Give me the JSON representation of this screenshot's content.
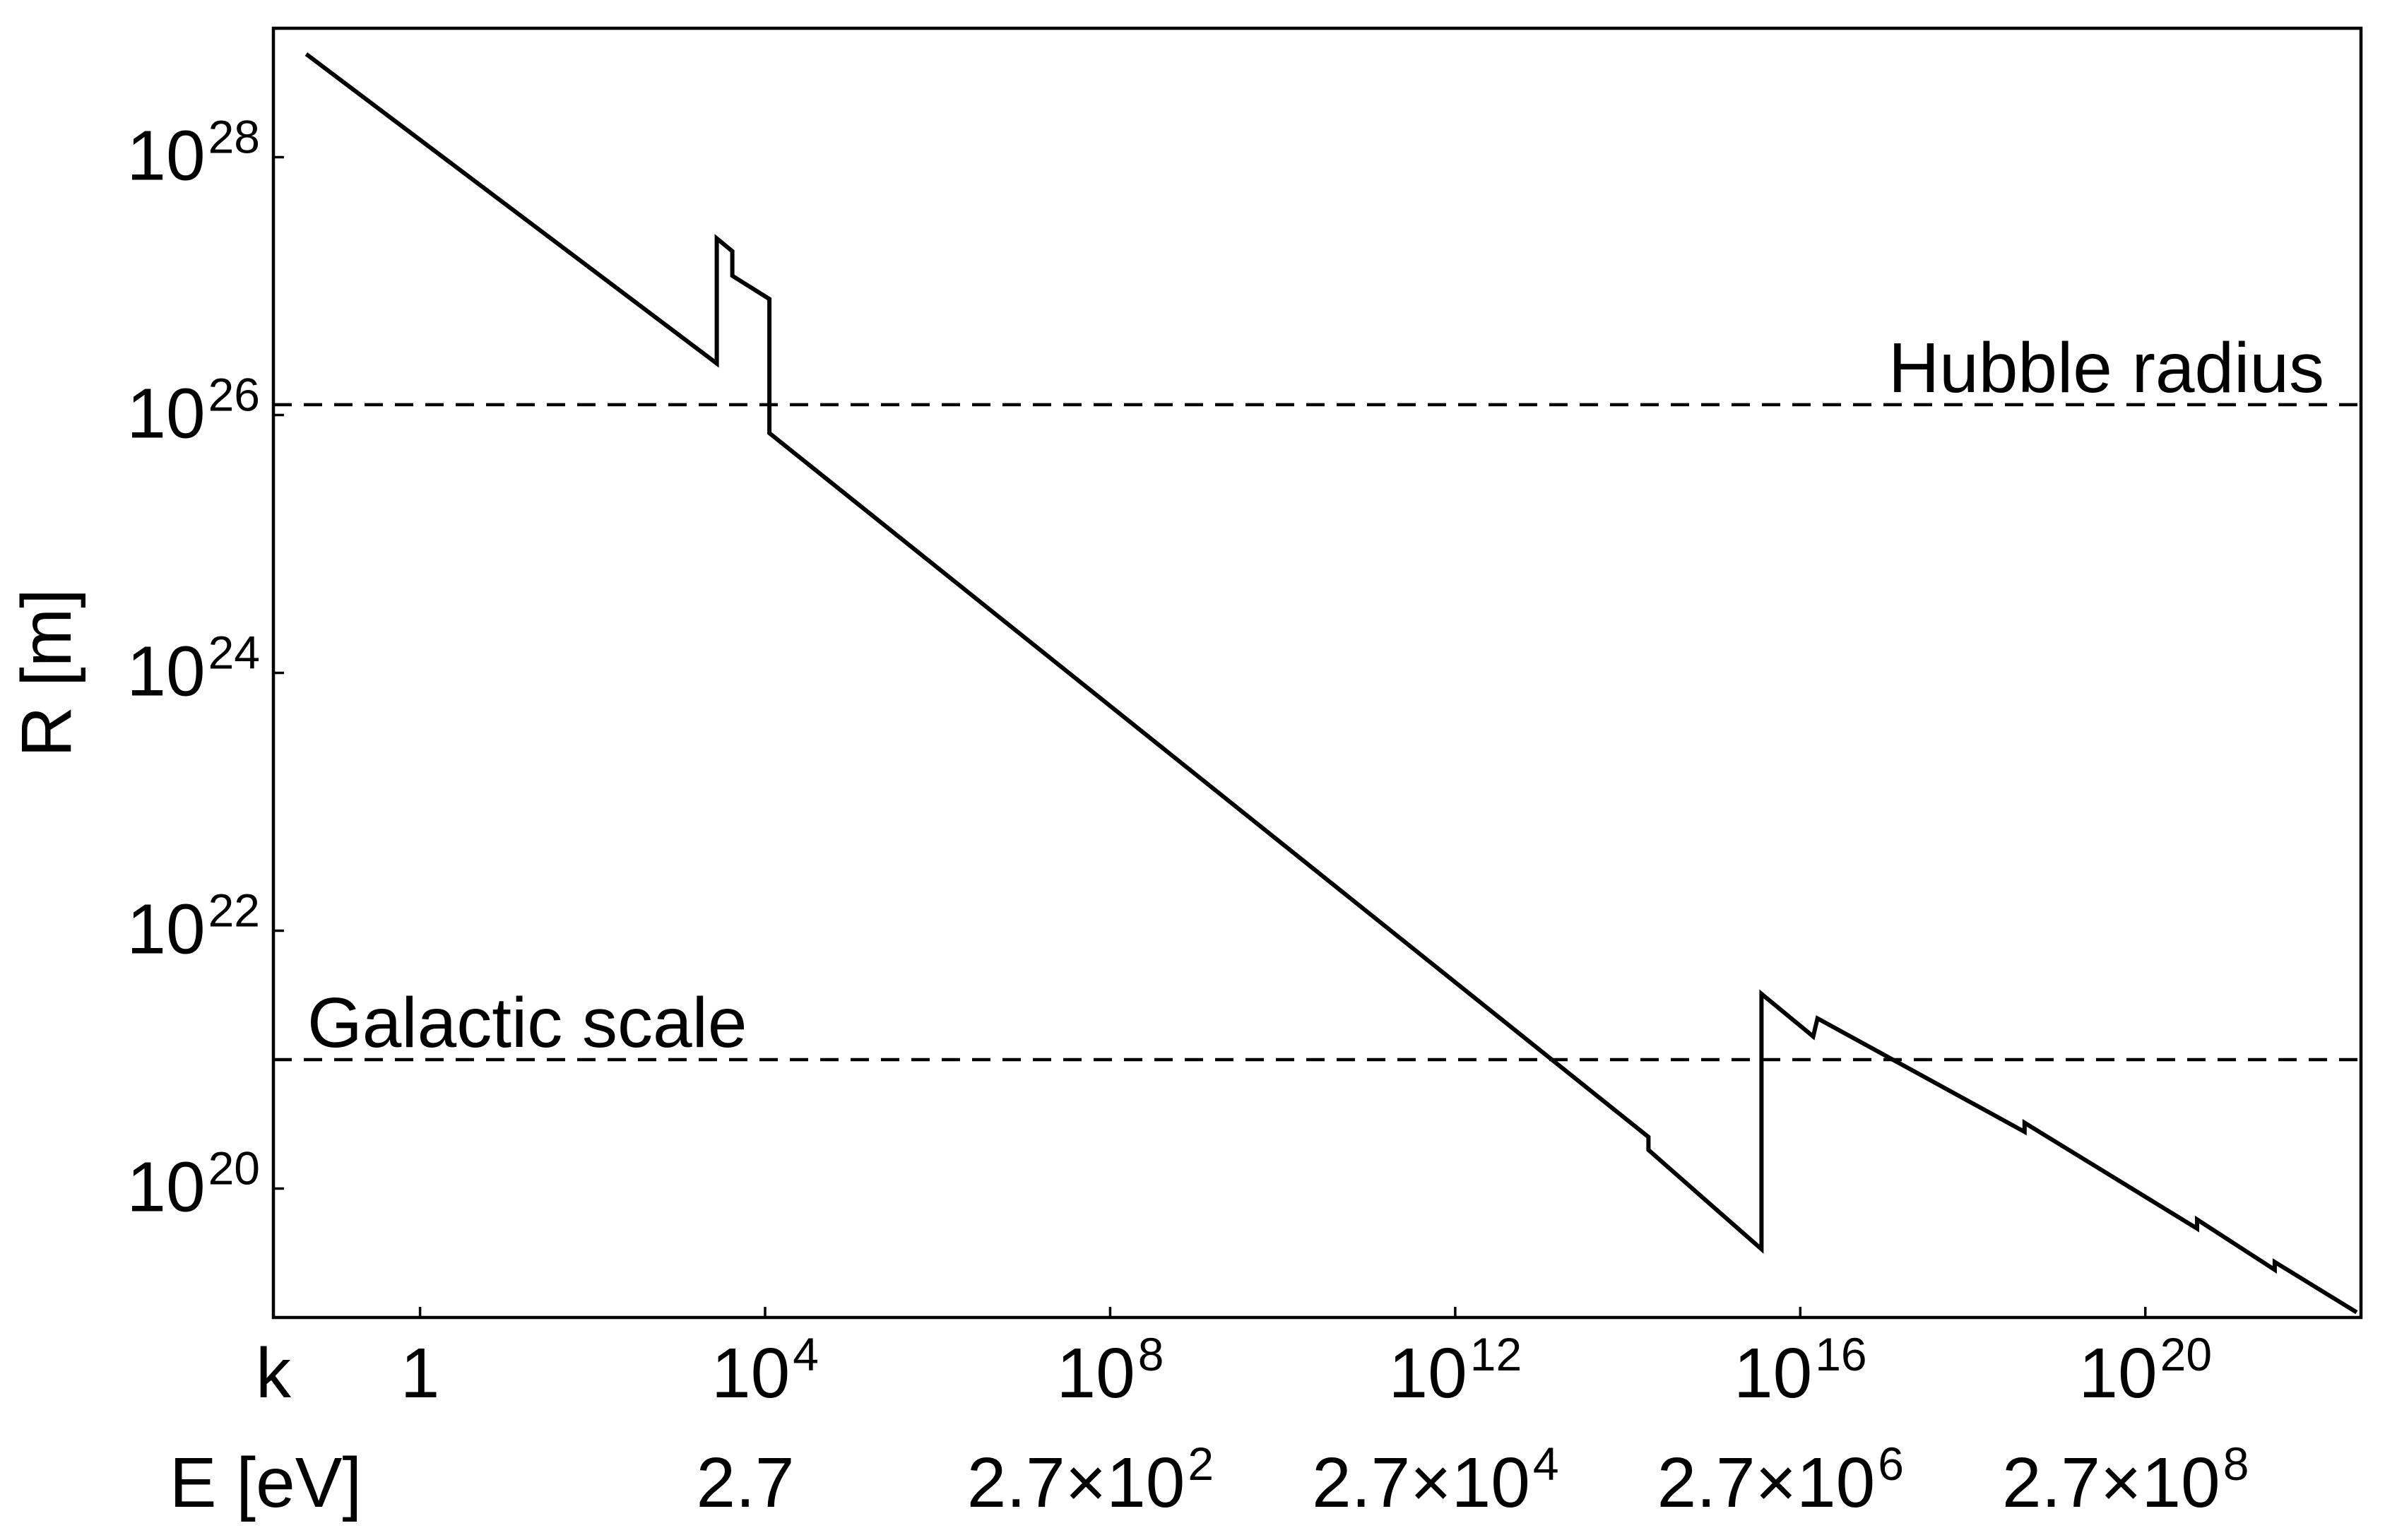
{
  "figure": {
    "background_color": "#ffffff",
    "ink_color": "#000000"
  },
  "chart_data": {
    "type": "line",
    "title": "",
    "xlabel": "k",
    "xlabel_secondary": "E [eV]",
    "ylabel": "R [m]",
    "x_scale": "log",
    "y_scale": "log",
    "xlim_log10": [
      -1.7,
      22.5
    ],
    "ylim_log10": [
      19,
      29
    ],
    "grid": "off",
    "legend": "none",
    "x_ticks": [
      {
        "log10_k": 0,
        "base": "1",
        "exp": ""
      },
      {
        "log10_k": 4,
        "base": "10",
        "exp": "4"
      },
      {
        "log10_k": 8,
        "base": "10",
        "exp": "8"
      },
      {
        "log10_k": 12,
        "base": "10",
        "exp": "12"
      },
      {
        "log10_k": 16,
        "base": "10",
        "exp": "16"
      },
      {
        "log10_k": 20,
        "base": "10",
        "exp": "20"
      }
    ],
    "y_ticks": [
      {
        "log10_R": 20,
        "base": "10",
        "exp": "20"
      },
      {
        "log10_R": 22,
        "base": "10",
        "exp": "22"
      },
      {
        "log10_R": 24,
        "base": "10",
        "exp": "24"
      },
      {
        "log10_R": 26,
        "base": "10",
        "exp": "26"
      },
      {
        "log10_R": 28,
        "base": "10",
        "exp": "28"
      }
    ],
    "secondary_x_ticks": [
      {
        "log10_k": 4,
        "base": "2.7",
        "exp": ""
      },
      {
        "log10_k": 8,
        "base": "2.7×10",
        "exp": "2"
      },
      {
        "log10_k": 12,
        "base": "2.7×10",
        "exp": "4"
      },
      {
        "log10_k": 16,
        "base": "2.7×10",
        "exp": "6"
      },
      {
        "log10_k": 20,
        "base": "2.7×10",
        "exp": "8"
      }
    ],
    "reference_lines": [
      {
        "label": "Hubble radius",
        "log10_R": 26.08,
        "label_anchor": "end"
      },
      {
        "label": "Galactic scale",
        "log10_R": 21.0,
        "label_anchor": "start"
      }
    ],
    "series": [
      {
        "points_log10": [
          [
            -1.32,
            28.8
          ],
          [
            3.44,
            26.4
          ],
          [
            3.44,
            27.37
          ],
          [
            3.62,
            27.27
          ],
          [
            3.62,
            27.08
          ],
          [
            4.05,
            26.9
          ],
          [
            4.05,
            25.86
          ],
          [
            14.24,
            20.4
          ],
          [
            14.24,
            20.3
          ],
          [
            15.55,
            19.53
          ],
          [
            15.55,
            21.51
          ],
          [
            16.15,
            21.18
          ],
          [
            16.2,
            21.32
          ],
          [
            18.6,
            20.44
          ],
          [
            18.6,
            20.51
          ],
          [
            20.6,
            19.69
          ],
          [
            20.6,
            19.76
          ],
          [
            21.5,
            19.37
          ],
          [
            21.5,
            19.43
          ],
          [
            22.45,
            19.04
          ]
        ]
      }
    ]
  }
}
